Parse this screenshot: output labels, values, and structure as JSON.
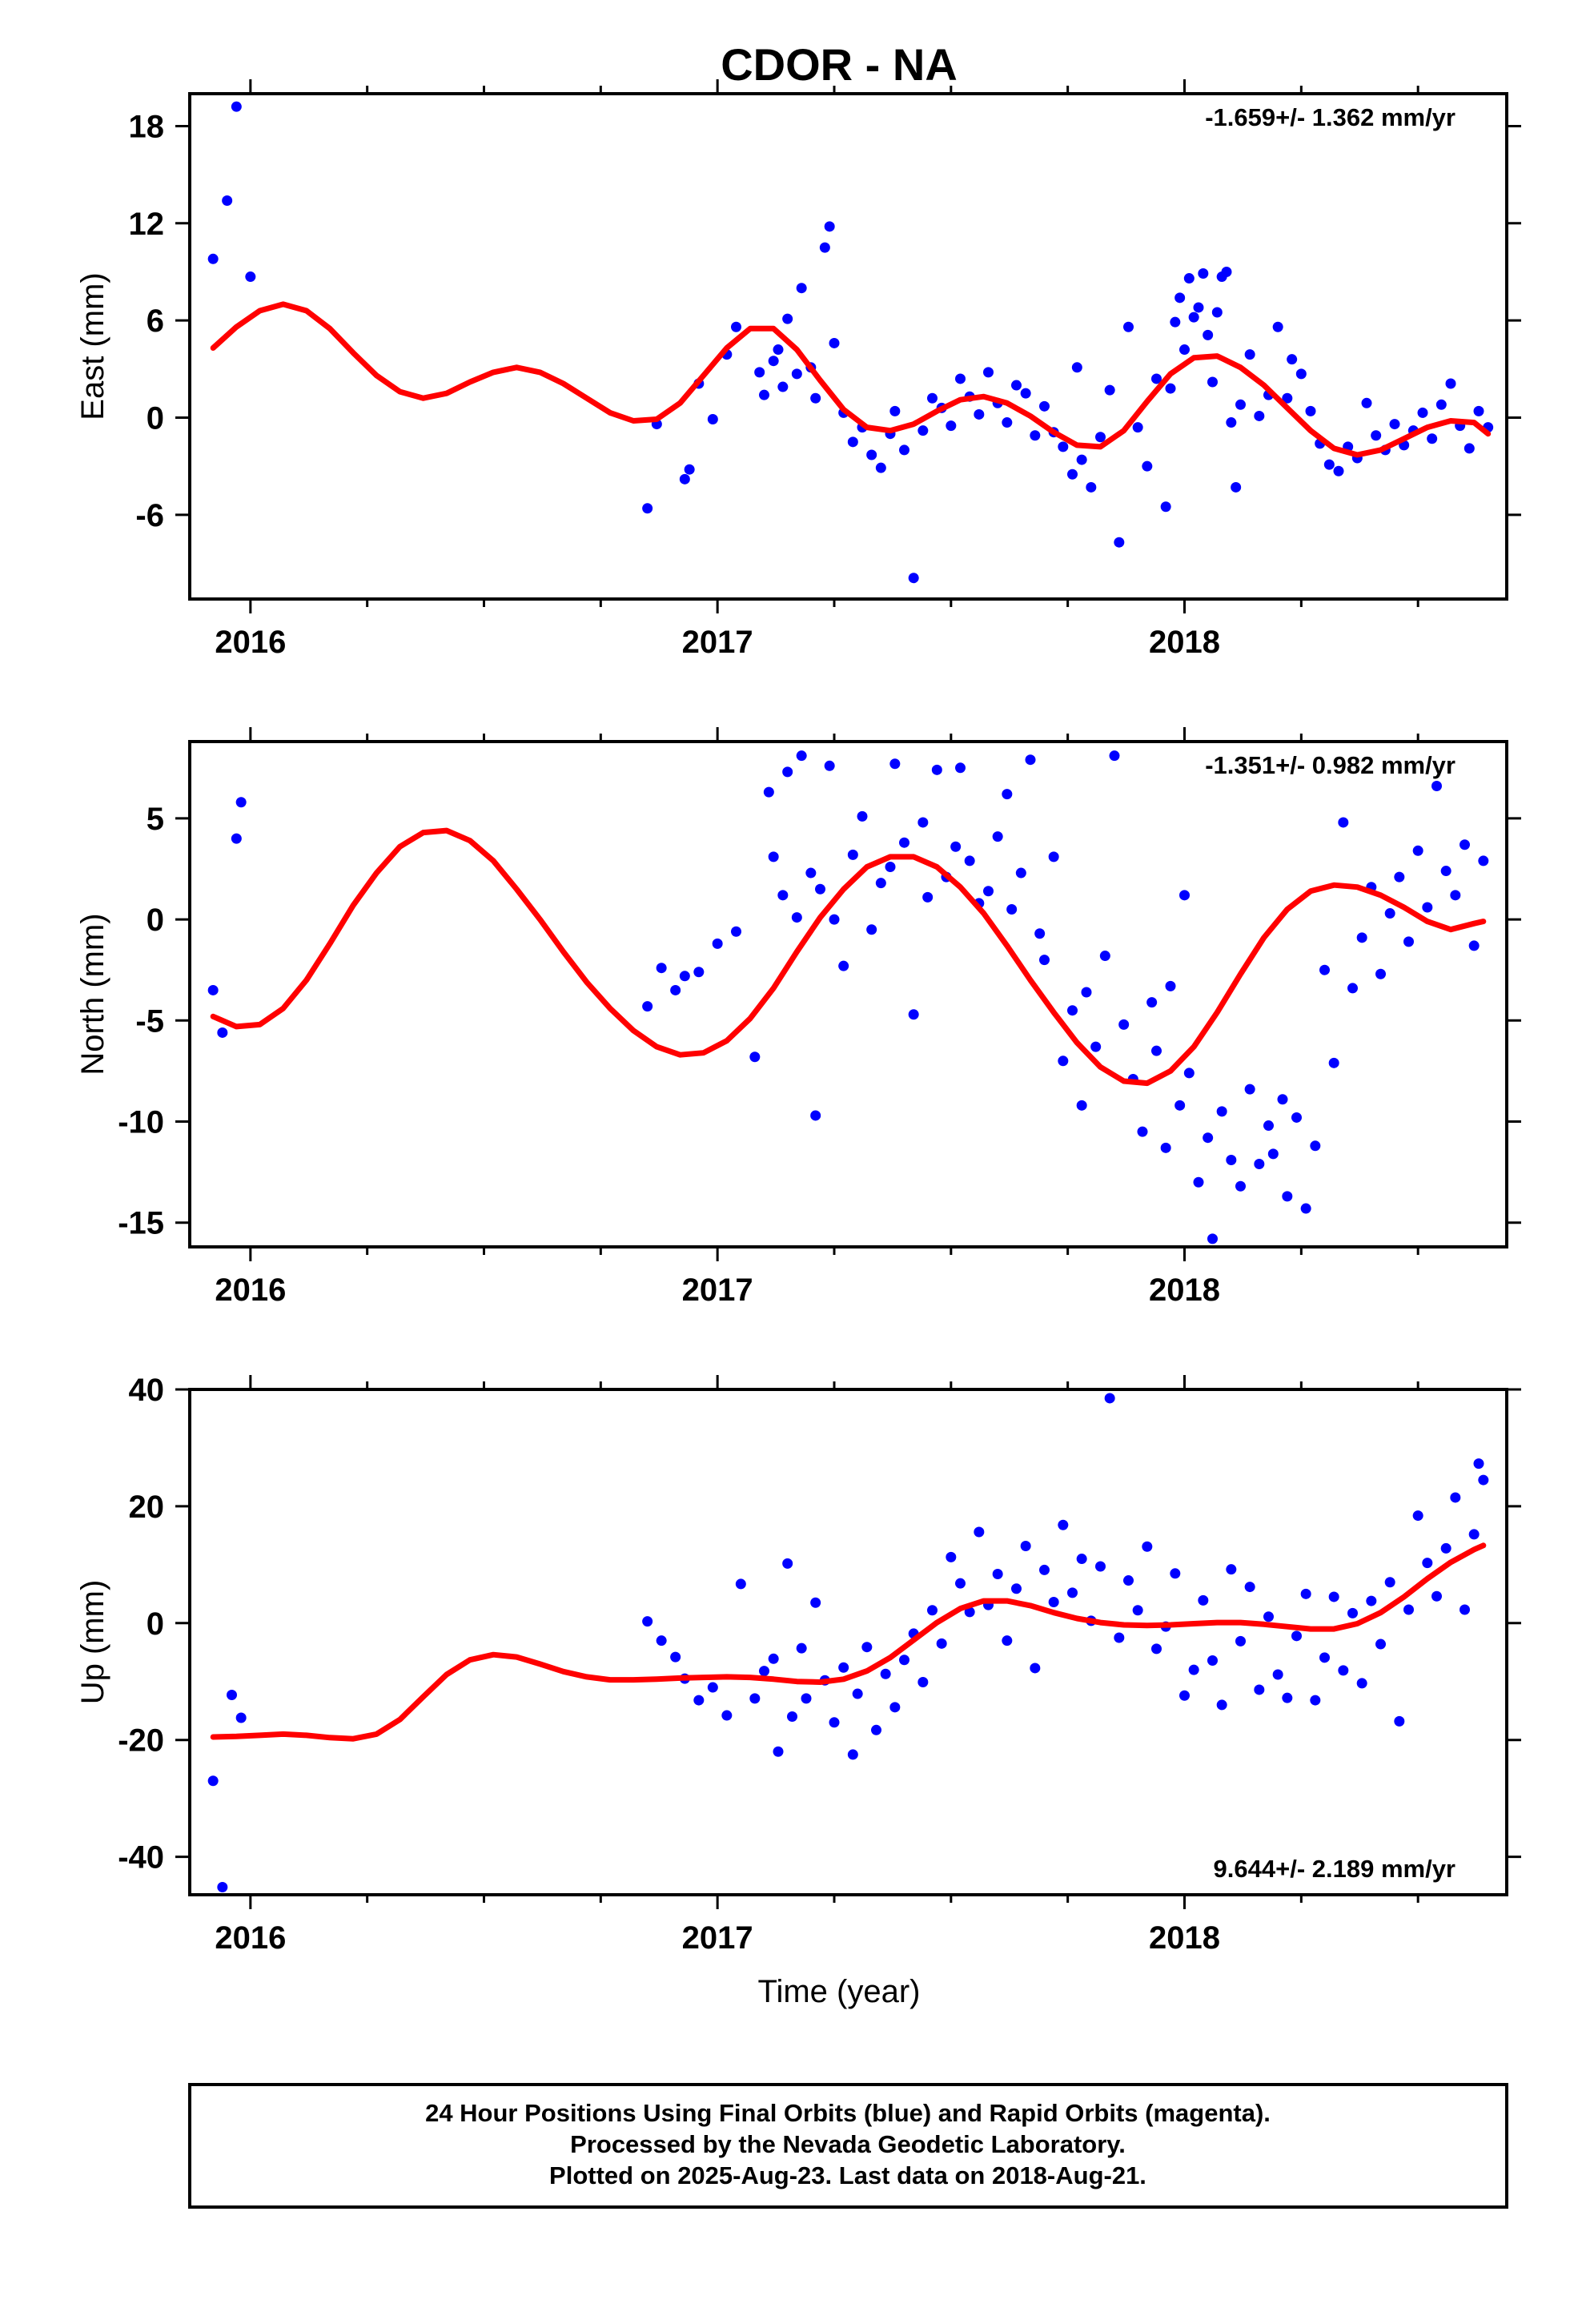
{
  "title": "CDOR - NA",
  "caption": {
    "lines": [
      "24 Hour Positions Using Final Orbits (blue) and Rapid Orbits (magenta).",
      "Processed by the Nevada Geodetic Laboratory.",
      "Plotted on 2025-Aug-23. Last data on 2018-Aug-21."
    ]
  },
  "colors": {
    "points": "#0000ff",
    "fit": "#ff0000",
    "frame": "#000000"
  },
  "xlabel": "Time (year)",
  "chart_data": [
    {
      "type": "scatter",
      "name": "east",
      "ylabel": "East (mm)",
      "rate": "-1.659+/- 1.362 mm/yr",
      "rate_position": "top-right",
      "xlim": [
        2015.87,
        2018.69
      ],
      "ylim": [
        -11.2,
        20
      ],
      "x_ticks": [
        2016,
        2017,
        2018
      ],
      "x_tick_labels": [
        "2016",
        "2017",
        "2018"
      ],
      "y_ticks": [
        -6,
        0,
        6,
        12,
        18
      ],
      "y_tick_labels": [
        "-6",
        "0",
        "6",
        "12",
        "18"
      ],
      "points": {
        "x": [
          2015.92,
          2015.95,
          2015.97,
          2016.0,
          2016.85,
          2016.87,
          2016.93,
          2016.94,
          2016.96,
          2016.99,
          2017.02,
          2017.04,
          2017.09,
          2017.1,
          2017.12,
          2017.13,
          2017.14,
          2017.15,
          2017.17,
          2017.18,
          2017.2,
          2017.21,
          2017.23,
          2017.24,
          2017.25,
          2017.27,
          2017.29,
          2017.31,
          2017.33,
          2017.35,
          2017.37,
          2017.38,
          2017.4,
          2017.42,
          2017.44,
          2017.46,
          2017.48,
          2017.5,
          2017.52,
          2017.54,
          2017.56,
          2017.58,
          2017.6,
          2017.62,
          2017.64,
          2017.66,
          2017.68,
          2017.7,
          2017.72,
          2017.74,
          2017.76,
          2017.77,
          2017.78,
          2017.8,
          2017.82,
          2017.84,
          2017.86,
          2017.88,
          2017.9,
          2017.92,
          2017.94,
          2017.96,
          2017.97,
          2017.98,
          2017.99,
          2018.0,
          2018.01,
          2018.02,
          2018.03,
          2018.04,
          2018.05,
          2018.06,
          2018.07,
          2018.08,
          2018.09,
          2018.1,
          2018.11,
          2018.12,
          2018.14,
          2018.16,
          2018.18,
          2018.2,
          2018.22,
          2018.23,
          2018.25,
          2018.27,
          2018.29,
          2018.31,
          2018.33,
          2018.35,
          2018.37,
          2018.39,
          2018.41,
          2018.43,
          2018.45,
          2018.47,
          2018.49,
          2018.51,
          2018.53,
          2018.55,
          2018.57,
          2018.59,
          2018.61,
          2018.63,
          2018.65
        ],
        "y": [
          9.8,
          13.4,
          19.2,
          8.7,
          -5.6,
          -0.4,
          -3.8,
          -3.2,
          2.1,
          -0.1,
          3.9,
          5.6,
          2.8,
          1.4,
          3.5,
          4.2,
          1.9,
          6.1,
          2.7,
          8.0,
          3.1,
          1.2,
          10.5,
          11.8,
          4.6,
          0.3,
          -1.5,
          -0.6,
          -2.3,
          -3.1,
          -1.0,
          0.4,
          -2.0,
          -9.9,
          -0.8,
          1.2,
          0.6,
          -0.5,
          2.4,
          1.3,
          0.2,
          2.8,
          0.9,
          -0.3,
          2.0,
          1.5,
          -1.1,
          0.7,
          -0.9,
          -1.8,
          -3.5,
          3.1,
          -2.6,
          -4.3,
          -1.2,
          1.7,
          -7.7,
          5.6,
          -0.6,
          -3.0,
          2.4,
          -5.5,
          1.8,
          5.9,
          7.4,
          4.2,
          8.6,
          6.2,
          6.8,
          8.9,
          5.1,
          2.2,
          6.5,
          8.7,
          9.0,
          -0.3,
          -4.3,
          0.8,
          3.9,
          0.1,
          1.4,
          5.6,
          1.2,
          3.6,
          2.7,
          0.4,
          -1.6,
          -2.9,
          -3.3,
          -1.8,
          -2.5,
          0.9,
          -1.1,
          -2.0,
          -0.4,
          -1.7,
          -0.8,
          0.3,
          -1.3,
          0.8,
          2.1,
          -0.5,
          -1.9,
          0.4,
          -0.6
        ]
      },
      "fit": {
        "x": [
          2015.92,
          2015.97,
          2016.02,
          2016.07,
          2016.12,
          2016.17,
          2016.22,
          2016.27,
          2016.32,
          2016.37,
          2016.42,
          2016.47,
          2016.52,
          2016.57,
          2016.62,
          2016.67,
          2016.72,
          2016.77,
          2016.82,
          2016.87,
          2016.92,
          2016.97,
          2017.02,
          2017.07,
          2017.12,
          2017.17,
          2017.22,
          2017.27,
          2017.32,
          2017.37,
          2017.42,
          2017.47,
          2017.52,
          2017.57,
          2017.62,
          2017.67,
          2017.72,
          2017.77,
          2017.82,
          2017.87,
          2017.92,
          2017.97,
          2018.02,
          2018.07,
          2018.12,
          2018.17,
          2018.22,
          2018.27,
          2018.32,
          2018.37,
          2018.42,
          2018.47,
          2018.52,
          2018.57,
          2018.62,
          2018.65
        ],
        "y": [
          4.3,
          5.6,
          6.6,
          7.0,
          6.6,
          5.5,
          4.0,
          2.6,
          1.6,
          1.2,
          1.5,
          2.2,
          2.8,
          3.1,
          2.8,
          2.1,
          1.2,
          0.3,
          -0.2,
          -0.1,
          0.9,
          2.6,
          4.3,
          5.5,
          5.5,
          4.2,
          2.3,
          0.5,
          -0.6,
          -0.8,
          -0.4,
          0.4,
          1.1,
          1.3,
          0.9,
          0.1,
          -0.9,
          -1.7,
          -1.8,
          -0.8,
          1.0,
          2.7,
          3.7,
          3.8,
          3.1,
          2.0,
          0.6,
          -0.8,
          -1.9,
          -2.3,
          -2.0,
          -1.3,
          -0.6,
          -0.2,
          -0.3,
          -1.0
        ]
      }
    },
    {
      "type": "scatter",
      "name": "north",
      "ylabel": "North (mm)",
      "rate": "-1.351+/- 0.982 mm/yr",
      "rate_position": "top-right",
      "xlim": [
        2015.87,
        2018.69
      ],
      "ylim": [
        -16.2,
        8.8
      ],
      "x_ticks": [
        2016,
        2017,
        2018
      ],
      "x_tick_labels": [
        "2016",
        "2017",
        "2018"
      ],
      "y_ticks": [
        -15,
        -10,
        -5,
        0,
        5
      ],
      "y_tick_labels": [
        "-15",
        "-10",
        "-5",
        "0",
        "5"
      ],
      "points": {
        "x": [
          2015.92,
          2015.94,
          2015.97,
          2015.98,
          2016.85,
          2016.88,
          2016.91,
          2016.93,
          2016.96,
          2017.0,
          2017.04,
          2017.08,
          2017.11,
          2017.12,
          2017.14,
          2017.15,
          2017.17,
          2017.18,
          2017.2,
          2017.21,
          2017.22,
          2017.24,
          2017.25,
          2017.27,
          2017.29,
          2017.31,
          2017.33,
          2017.35,
          2017.37,
          2017.38,
          2017.4,
          2017.42,
          2017.44,
          2017.45,
          2017.47,
          2017.49,
          2017.51,
          2017.52,
          2017.54,
          2017.56,
          2017.58,
          2017.6,
          2017.62,
          2017.63,
          2017.65,
          2017.67,
          2017.69,
          2017.7,
          2017.72,
          2017.74,
          2017.76,
          2017.78,
          2017.79,
          2017.81,
          2017.83,
          2017.85,
          2017.87,
          2017.89,
          2017.91,
          2017.93,
          2017.94,
          2017.96,
          2017.97,
          2017.99,
          2018.0,
          2018.01,
          2018.03,
          2018.05,
          2018.06,
          2018.08,
          2018.1,
          2018.12,
          2018.14,
          2018.16,
          2018.18,
          2018.19,
          2018.21,
          2018.22,
          2018.24,
          2018.26,
          2018.28,
          2018.3,
          2018.32,
          2018.34,
          2018.36,
          2018.38,
          2018.4,
          2018.42,
          2018.44,
          2018.46,
          2018.48,
          2018.5,
          2018.52,
          2018.54,
          2018.56,
          2018.58,
          2018.6,
          2018.62,
          2018.64
        ],
        "y": [
          -3.5,
          -5.6,
          4.0,
          5.8,
          -4.3,
          -2.4,
          -3.5,
          -2.8,
          -2.6,
          -1.2,
          -0.6,
          -6.8,
          6.3,
          3.1,
          1.2,
          7.3,
          0.1,
          8.1,
          2.3,
          -9.7,
          1.5,
          7.6,
          0.0,
          -2.3,
          3.2,
          5.1,
          -0.5,
          1.8,
          2.6,
          7.7,
          3.8,
          -4.7,
          4.8,
          1.1,
          7.4,
          2.1,
          3.6,
          7.5,
          2.9,
          0.8,
          1.4,
          4.1,
          6.2,
          0.5,
          2.3,
          7.9,
          -0.7,
          -2.0,
          3.1,
          -7.0,
          -4.5,
          -9.2,
          -3.6,
          -6.3,
          -1.8,
          8.1,
          -5.2,
          -7.9,
          -10.5,
          -4.1,
          -6.5,
          -11.3,
          -3.3,
          -9.2,
          1.2,
          -7.6,
          -13.0,
          -10.8,
          -15.8,
          -9.5,
          -11.9,
          -13.2,
          -8.4,
          -12.1,
          -10.2,
          -11.6,
          -8.9,
          -13.7,
          -9.8,
          -14.3,
          -11.2,
          -2.5,
          -7.1,
          4.8,
          -3.4,
          -0.9,
          1.6,
          -2.7,
          0.3,
          2.1,
          -1.1,
          3.4,
          0.6,
          6.6,
          2.4,
          1.2,
          3.7,
          -1.3,
          2.9
        ]
      },
      "fit": {
        "x": [
          2015.92,
          2015.97,
          2016.02,
          2016.07,
          2016.12,
          2016.17,
          2016.22,
          2016.27,
          2016.32,
          2016.37,
          2016.42,
          2016.47,
          2016.52,
          2016.57,
          2016.62,
          2016.67,
          2016.72,
          2016.77,
          2016.82,
          2016.87,
          2016.92,
          2016.97,
          2017.02,
          2017.07,
          2017.12,
          2017.17,
          2017.22,
          2017.27,
          2017.32,
          2017.37,
          2017.42,
          2017.47,
          2017.52,
          2017.57,
          2017.62,
          2017.67,
          2017.72,
          2017.77,
          2017.82,
          2017.87,
          2017.92,
          2017.97,
          2018.02,
          2018.07,
          2018.12,
          2018.17,
          2018.22,
          2018.27,
          2018.32,
          2018.37,
          2018.42,
          2018.47,
          2018.52,
          2018.57,
          2018.62,
          2018.64
        ],
        "y": [
          -4.8,
          -5.3,
          -5.2,
          -4.4,
          -3.0,
          -1.2,
          0.7,
          2.3,
          3.6,
          4.3,
          4.4,
          3.9,
          2.9,
          1.5,
          0.0,
          -1.6,
          -3.1,
          -4.4,
          -5.5,
          -6.3,
          -6.7,
          -6.6,
          -6.0,
          -4.9,
          -3.4,
          -1.6,
          0.1,
          1.5,
          2.6,
          3.1,
          3.1,
          2.6,
          1.6,
          0.3,
          -1.3,
          -3.0,
          -4.6,
          -6.1,
          -7.3,
          -8.0,
          -8.1,
          -7.5,
          -6.3,
          -4.6,
          -2.7,
          -0.9,
          0.5,
          1.4,
          1.7,
          1.6,
          1.2,
          0.6,
          -0.1,
          -0.5,
          -0.2,
          -0.1
        ]
      }
    },
    {
      "type": "scatter",
      "name": "up",
      "ylabel": "Up (mm)",
      "rate": "9.644+/- 2.189 mm/yr",
      "rate_position": "bottom-right",
      "xlim": [
        2015.87,
        2018.69
      ],
      "ylim": [
        -46.5,
        40
      ],
      "x_ticks": [
        2016,
        2017,
        2018
      ],
      "x_tick_labels": [
        "2016",
        "2017",
        "2018"
      ],
      "y_ticks": [
        -40,
        -20,
        0,
        20,
        40
      ],
      "y_tick_labels": [
        "-40",
        "-20",
        "0",
        "20",
        "40"
      ],
      "points": {
        "x": [
          2015.92,
          2015.94,
          2015.96,
          2015.98,
          2016.85,
          2016.88,
          2016.91,
          2016.93,
          2016.96,
          2016.99,
          2017.02,
          2017.05,
          2017.08,
          2017.1,
          2017.12,
          2017.13,
          2017.15,
          2017.16,
          2017.18,
          2017.19,
          2017.21,
          2017.23,
          2017.25,
          2017.27,
          2017.29,
          2017.3,
          2017.32,
          2017.34,
          2017.36,
          2017.38,
          2017.4,
          2017.42,
          2017.44,
          2017.46,
          2017.48,
          2017.5,
          2017.52,
          2017.54,
          2017.56,
          2017.58,
          2017.6,
          2017.62,
          2017.64,
          2017.66,
          2017.68,
          2017.7,
          2017.72,
          2017.74,
          2017.76,
          2017.78,
          2017.8,
          2017.82,
          2017.84,
          2017.86,
          2017.88,
          2017.9,
          2017.92,
          2017.94,
          2017.96,
          2017.98,
          2018.0,
          2018.02,
          2018.04,
          2018.06,
          2018.08,
          2018.1,
          2018.12,
          2018.14,
          2018.16,
          2018.18,
          2018.2,
          2018.22,
          2018.24,
          2018.26,
          2018.28,
          2018.3,
          2018.32,
          2018.34,
          2018.36,
          2018.38,
          2018.4,
          2018.42,
          2018.44,
          2018.46,
          2018.48,
          2018.5,
          2018.52,
          2018.54,
          2018.56,
          2018.58,
          2018.6,
          2018.62,
          2018.63,
          2018.64
        ],
        "y": [
          -27.0,
          -45.2,
          -12.3,
          -16.2,
          0.3,
          -3.0,
          -5.8,
          -9.5,
          -13.2,
          -11.0,
          -15.8,
          6.7,
          -12.9,
          -8.2,
          -6.1,
          -22.0,
          10.2,
          -16.0,
          -4.3,
          -12.9,
          3.5,
          -9.8,
          -17.0,
          -7.6,
          -22.5,
          -12.1,
          -4.1,
          -18.3,
          -8.7,
          -14.4,
          -6.3,
          -1.8,
          -10.1,
          2.2,
          -3.5,
          11.3,
          6.8,
          1.9,
          15.6,
          3.1,
          8.4,
          -3.0,
          5.9,
          13.2,
          -7.7,
          9.1,
          3.6,
          16.8,
          5.2,
          11.0,
          0.4,
          9.7,
          38.5,
          -2.5,
          7.3,
          2.2,
          13.1,
          -4.4,
          -0.6,
          8.5,
          -12.4,
          -8.0,
          3.9,
          -6.4,
          -14.0,
          9.2,
          -3.1,
          6.2,
          -11.4,
          1.1,
          -8.8,
          -12.8,
          -2.2,
          5.0,
          -13.2,
          -5.9,
          4.5,
          -8.1,
          1.7,
          -10.3,
          3.8,
          -3.6,
          7.0,
          -16.8,
          2.3,
          18.4,
          10.3,
          4.6,
          12.8,
          21.5,
          2.3,
          15.2,
          27.3,
          24.5
        ]
      },
      "fit": {
        "x": [
          2015.92,
          2015.97,
          2016.02,
          2016.07,
          2016.12,
          2016.17,
          2016.22,
          2016.27,
          2016.32,
          2016.37,
          2016.42,
          2016.47,
          2016.52,
          2016.57,
          2016.62,
          2016.67,
          2016.72,
          2016.77,
          2016.82,
          2016.87,
          2016.92,
          2016.97,
          2017.02,
          2017.07,
          2017.12,
          2017.17,
          2017.22,
          2017.27,
          2017.32,
          2017.37,
          2017.42,
          2017.47,
          2017.52,
          2017.57,
          2017.62,
          2017.67,
          2017.72,
          2017.77,
          2017.82,
          2017.87,
          2017.92,
          2017.97,
          2018.02,
          2018.07,
          2018.12,
          2018.17,
          2018.22,
          2018.27,
          2018.32,
          2018.37,
          2018.42,
          2018.47,
          2018.52,
          2018.57,
          2018.62,
          2018.64
        ],
        "y": [
          -19.5,
          -19.4,
          -19.2,
          -19.0,
          -19.2,
          -19.6,
          -19.8,
          -19.0,
          -16.5,
          -12.6,
          -8.8,
          -6.3,
          -5.4,
          -5.8,
          -7.0,
          -8.3,
          -9.2,
          -9.7,
          -9.7,
          -9.6,
          -9.4,
          -9.3,
          -9.2,
          -9.3,
          -9.6,
          -10.0,
          -10.1,
          -9.6,
          -8.2,
          -5.9,
          -2.9,
          0.1,
          2.5,
          3.8,
          3.8,
          3.0,
          1.8,
          0.8,
          0.1,
          -0.3,
          -0.4,
          -0.3,
          -0.1,
          0.1,
          0.1,
          -0.2,
          -0.6,
          -1.0,
          -1.0,
          -0.1,
          1.8,
          4.5,
          7.6,
          10.4,
          12.6,
          13.3
        ]
      }
    }
  ]
}
